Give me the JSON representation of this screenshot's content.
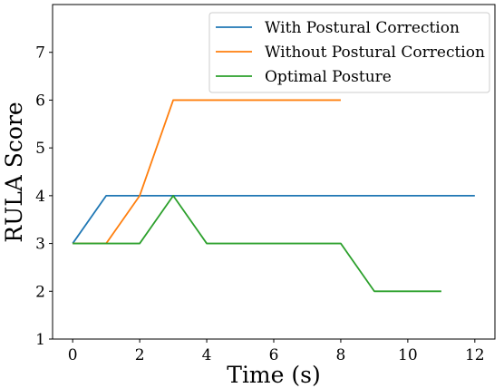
{
  "chart_data": {
    "type": "line",
    "xlabel": "Time (s)",
    "ylabel": "RULA Score",
    "xlim": [
      -0.6,
      12.6
    ],
    "ylim": [
      1,
      8
    ],
    "xticks": [
      0,
      2,
      4,
      6,
      8,
      10,
      12
    ],
    "yticks": [
      1,
      2,
      3,
      4,
      5,
      6,
      7
    ],
    "grid": false,
    "legend_position": "top-right",
    "series": [
      {
        "name": "With Postural Correction",
        "color": "#1f77b4",
        "x": [
          0,
          1,
          2,
          3,
          4,
          5,
          6,
          7,
          8,
          9,
          10,
          11,
          12
        ],
        "y": [
          3,
          4,
          4,
          4,
          4,
          4,
          4,
          4,
          4,
          4,
          4,
          4,
          4
        ]
      },
      {
        "name": "Without Postural Correction",
        "color": "#ff7f0e",
        "x": [
          0,
          1,
          2,
          3,
          4,
          5,
          6,
          7,
          8
        ],
        "y": [
          3,
          3,
          4,
          6,
          6,
          6,
          6,
          6,
          6
        ]
      },
      {
        "name": "Optimal Posture",
        "color": "#2ca02c",
        "x": [
          0,
          1,
          2,
          3,
          4,
          5,
          6,
          7,
          8,
          9,
          10,
          11
        ],
        "y": [
          3,
          3,
          3,
          4,
          3,
          3,
          3,
          3,
          3,
          2,
          2,
          2
        ]
      }
    ]
  }
}
